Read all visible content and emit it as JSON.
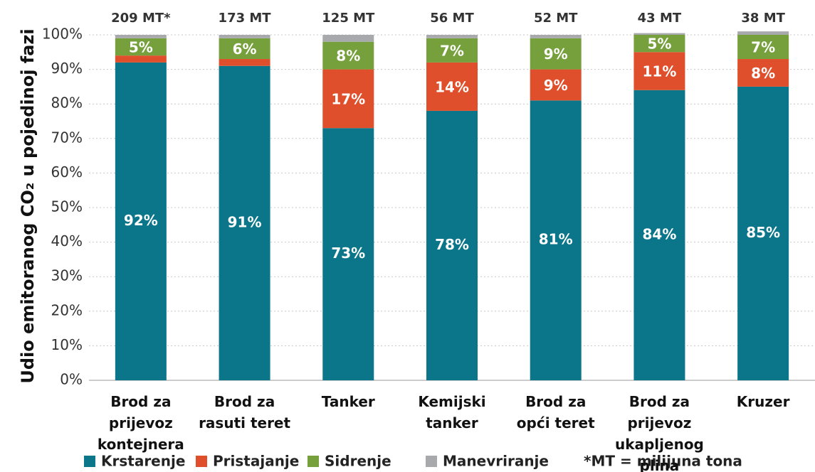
{
  "chart_data": {
    "type": "stacked_bar",
    "y_label": "Udio emitoranog CO₂ u pojedinoj fazi",
    "categories": [
      "Brod za prijevoz\nkontejnera",
      "Brod za\nrasuti teret",
      "Tanker",
      "Kemijski\ntanker",
      "Brod za\nopći teret",
      "Brod za prijevoz\nukapljenog plina",
      "Kruzer"
    ],
    "top_labels": [
      "209 MT*",
      "173 MT",
      "125 MT",
      "56 MT",
      "52 MT",
      "43 MT",
      "38 MT"
    ],
    "series": [
      {
        "name": "Krstarenje",
        "color": "#0b7689",
        "values": [
          92,
          91,
          73,
          78,
          81,
          84,
          85
        ],
        "value_labels": [
          "92%",
          "91%",
          "73%",
          "78%",
          "81%",
          "84%",
          "85%"
        ]
      },
      {
        "name": "Pristajanje",
        "color": "#df4f2b",
        "values": [
          2,
          2,
          17,
          14,
          9,
          11,
          8
        ],
        "value_labels": [
          null,
          null,
          "17%",
          "14%",
          "9%",
          "11%",
          "8%"
        ]
      },
      {
        "name": "Sidrenje",
        "color": "#76a03c",
        "values": [
          5,
          6,
          8,
          7,
          9,
          5,
          7
        ],
        "value_labels": [
          "5%",
          "6%",
          "8%",
          "7%",
          "9%",
          "5%",
          "7%"
        ]
      },
      {
        "name": "Manevriranje",
        "color": "#a7a9ac",
        "values": [
          1,
          1,
          2,
          1,
          1,
          0.5,
          1
        ]
      }
    ],
    "ylim": [
      0,
      100
    ],
    "yticks": [
      {
        "value": 0,
        "label": "0%"
      },
      {
        "value": 10,
        "label": "10%"
      },
      {
        "value": 20,
        "label": "20%"
      },
      {
        "value": 30,
        "label": "30%"
      },
      {
        "value": 40,
        "label": "40%"
      },
      {
        "value": 50,
        "label": "50%"
      },
      {
        "value": 60,
        "label": "60%"
      },
      {
        "value": 70,
        "label": "70%"
      },
      {
        "value": 80,
        "label": "80%"
      },
      {
        "value": 90,
        "label": "90%"
      },
      {
        "value": 100,
        "label": "100%"
      }
    ],
    "grid": true,
    "footnote": "*MT = milijuna tona"
  }
}
